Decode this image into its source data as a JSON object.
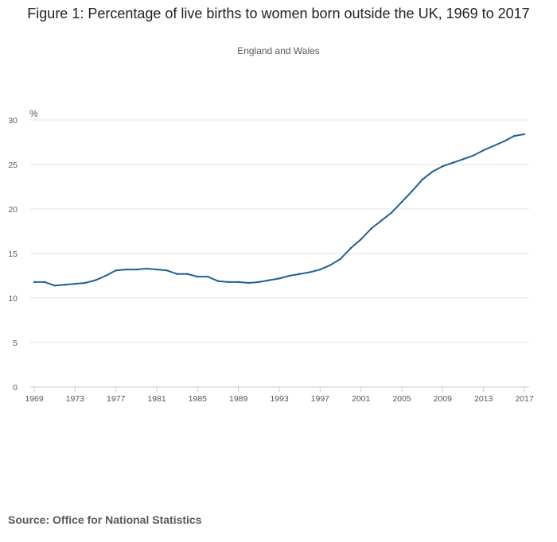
{
  "title": "Figure 1: Percentage of live births to women born outside the UK, 1969 to 2017",
  "subtitle": "England and Wales",
  "source": "Source: Office for National Statistics",
  "colors": {
    "line": "#206095",
    "grid": "#e3e3e3",
    "axis": "#cccccc",
    "text": "#595959"
  },
  "chart_data": {
    "type": "line",
    "title": "Figure 1: Percentage of live births to women born outside the UK, 1969 to 2017",
    "subtitle": "England and Wales",
    "unit_label": "%",
    "xlabel": "",
    "ylabel": "",
    "grid": true,
    "legend": "none",
    "xlim": [
      1969,
      2017
    ],
    "ylim": [
      0,
      30
    ],
    "y_ticks": [
      0,
      5,
      10,
      15,
      20,
      25,
      30
    ],
    "x_ticks": [
      "1969",
      "1973",
      "1977",
      "1981",
      "1985",
      "1989",
      "1993",
      "1997",
      "2001",
      "2005",
      "2009",
      "2013",
      "2017"
    ],
    "x": [
      1969,
      1970,
      1971,
      1972,
      1973,
      1974,
      1975,
      1976,
      1977,
      1978,
      1979,
      1980,
      1981,
      1982,
      1983,
      1984,
      1985,
      1986,
      1987,
      1988,
      1989,
      1990,
      1991,
      1992,
      1993,
      1994,
      1995,
      1996,
      1997,
      1998,
      1999,
      2000,
      2001,
      2002,
      2003,
      2004,
      2005,
      2006,
      2007,
      2008,
      2009,
      2010,
      2011,
      2012,
      2013,
      2014,
      2015,
      2016,
      2017
    ],
    "series": [
      {
        "values": [
          11.8,
          11.8,
          11.4,
          11.5,
          11.6,
          11.7,
          12.0,
          12.5,
          13.1,
          13.2,
          13.2,
          13.3,
          13.2,
          13.1,
          12.7,
          12.7,
          12.4,
          12.4,
          11.9,
          11.8,
          11.8,
          11.7,
          11.8,
          12.0,
          12.2,
          12.5,
          12.7,
          12.9,
          13.2,
          13.7,
          14.4,
          15.6,
          16.6,
          17.8,
          18.7,
          19.6,
          20.8,
          22.0,
          23.3,
          24.2,
          24.8,
          25.2,
          25.6,
          26.0,
          26.6,
          27.1,
          27.6,
          28.2,
          28.4
        ]
      }
    ]
  }
}
